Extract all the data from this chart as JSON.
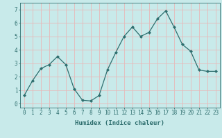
{
  "x": [
    0,
    1,
    2,
    3,
    4,
    5,
    6,
    7,
    8,
    9,
    10,
    11,
    12,
    13,
    14,
    15,
    16,
    17,
    18,
    19,
    20,
    21,
    22,
    23
  ],
  "y": [
    0.6,
    1.7,
    2.6,
    2.9,
    3.5,
    2.9,
    1.1,
    0.25,
    0.2,
    0.6,
    2.5,
    3.8,
    5.0,
    5.7,
    5.0,
    5.3,
    6.3,
    6.9,
    5.7,
    4.4,
    3.9,
    2.5,
    2.4,
    2.4
  ],
  "line_color": "#2e6e6e",
  "marker": "D",
  "marker_size": 2.0,
  "bg_color": "#c8eaea",
  "grid_color": "#e8b8b8",
  "xlabel": "Humidex (Indice chaleur)",
  "ylabel": "",
  "xlim": [
    -0.5,
    23.5
  ],
  "ylim": [
    -0.3,
    7.5
  ],
  "yticks": [
    0,
    1,
    2,
    3,
    4,
    5,
    6,
    7
  ],
  "xticks": [
    0,
    1,
    2,
    3,
    4,
    5,
    6,
    7,
    8,
    9,
    10,
    11,
    12,
    13,
    14,
    15,
    16,
    17,
    18,
    19,
    20,
    21,
    22,
    23
  ],
  "label_fontsize": 6.5,
  "tick_fontsize": 5.5,
  "tick_color": "#2e6e6e",
  "axis_color": "#2e6e6e",
  "linewidth": 0.9
}
